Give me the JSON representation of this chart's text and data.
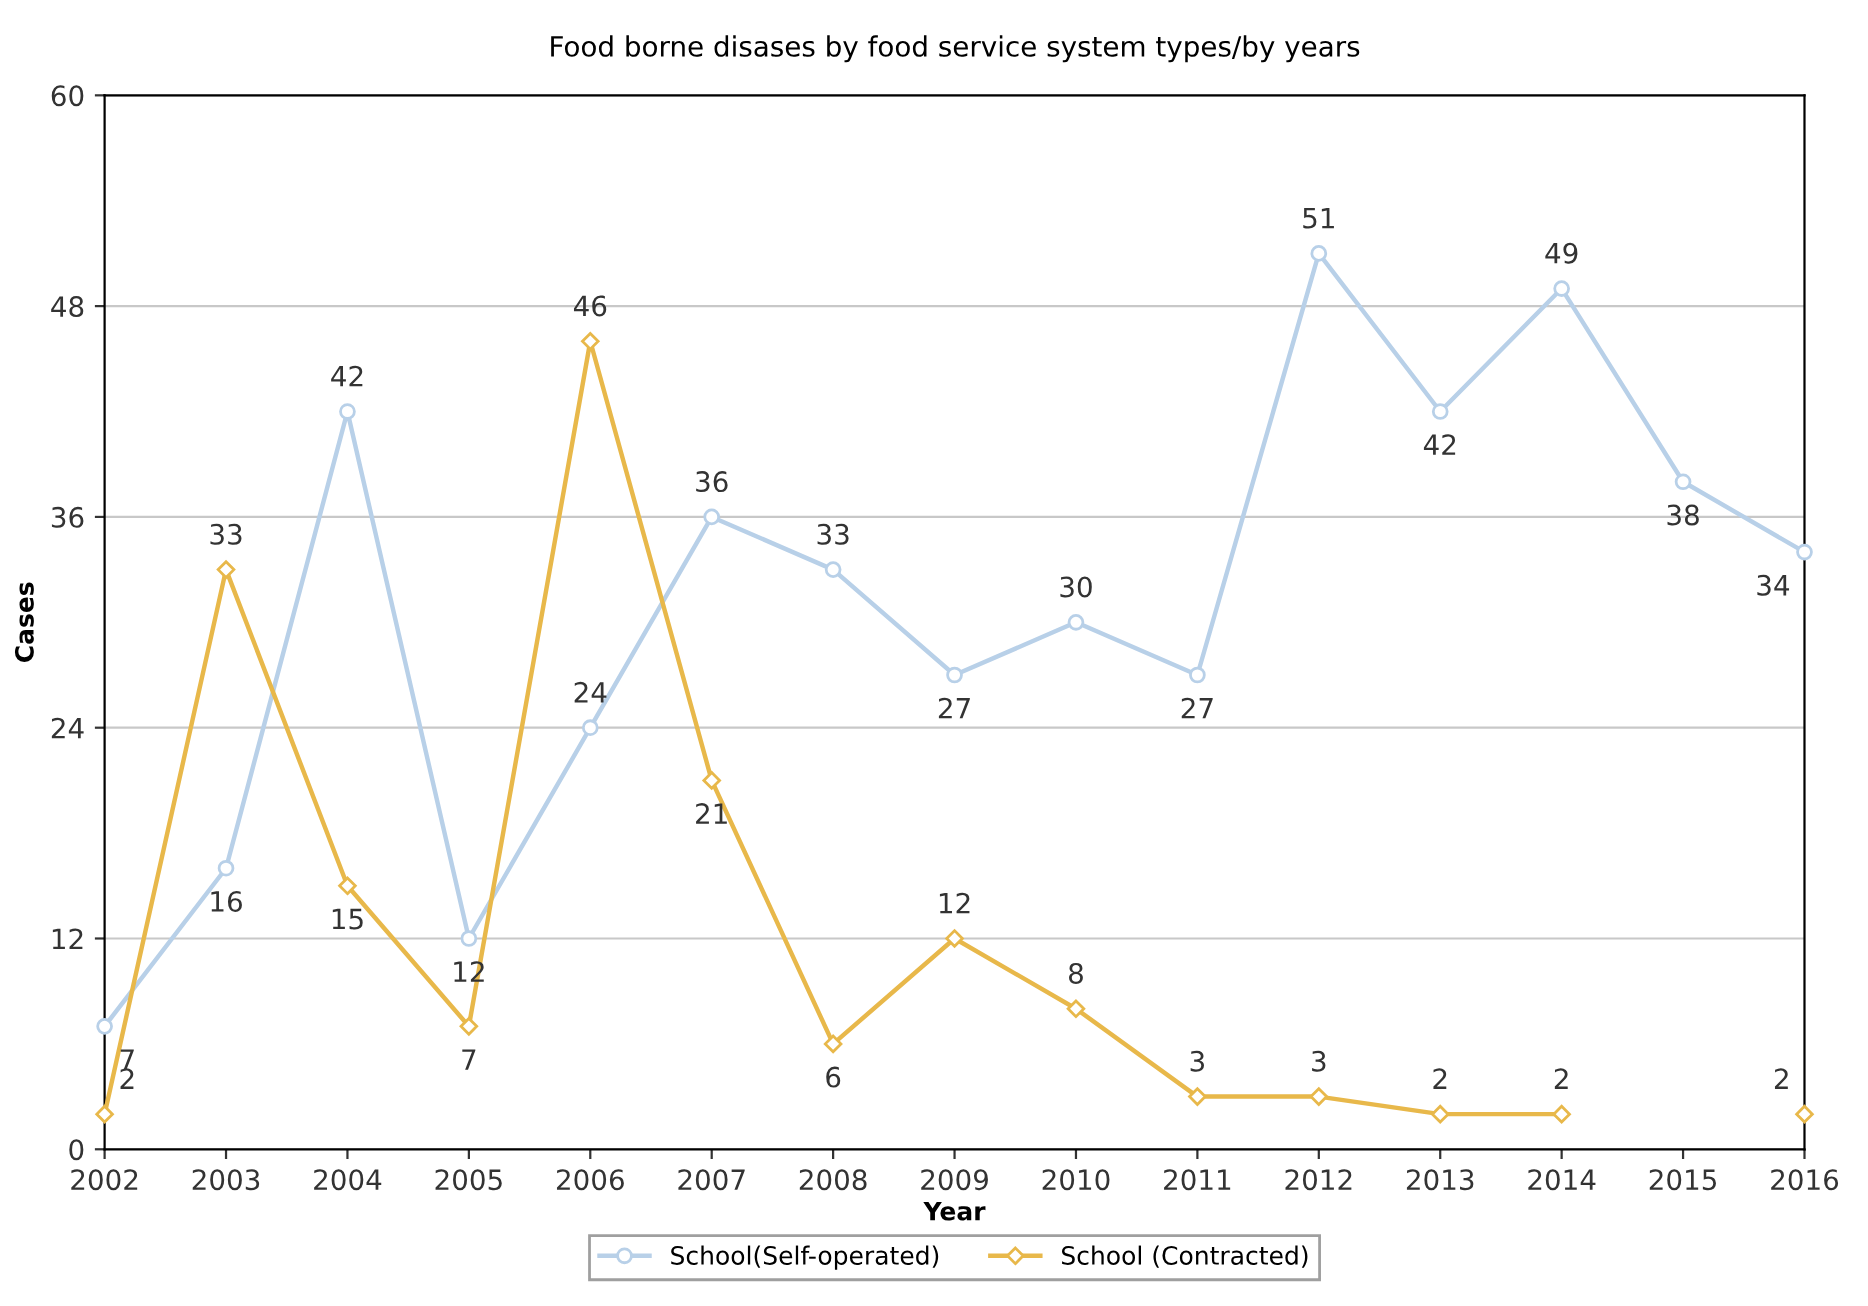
{
  "chart_data": {
    "type": "line",
    "title": "Food borne disases by food service system types/by years",
    "xlabel": "Year",
    "ylabel": "Cases",
    "categories": [
      "2002",
      "2003",
      "2004",
      "2005",
      "2006",
      "2007",
      "2008",
      "2009",
      "2010",
      "2011",
      "2012",
      "2013",
      "2014",
      "2015",
      "2016"
    ],
    "series": [
      {
        "name": "School(Self-operated)",
        "color": "#b8d0e8",
        "marker": "circle",
        "values": [
          7,
          16,
          42,
          12,
          24,
          36,
          33,
          27,
          30,
          27,
          51,
          42,
          49,
          38,
          34
        ]
      },
      {
        "name": "School (Contracted)",
        "color": "#e8b84a",
        "marker": "diamond",
        "values": [
          2,
          33,
          15,
          7,
          46,
          21,
          6,
          12,
          8,
          3,
          3,
          2,
          2,
          null,
          2
        ]
      }
    ],
    "ylim": [
      0,
      60
    ],
    "yticks": [
      0,
      12,
      24,
      36,
      48,
      60
    ],
    "grid": "y",
    "legend": "bottom",
    "data_labels": true,
    "line_style": "solid"
  }
}
